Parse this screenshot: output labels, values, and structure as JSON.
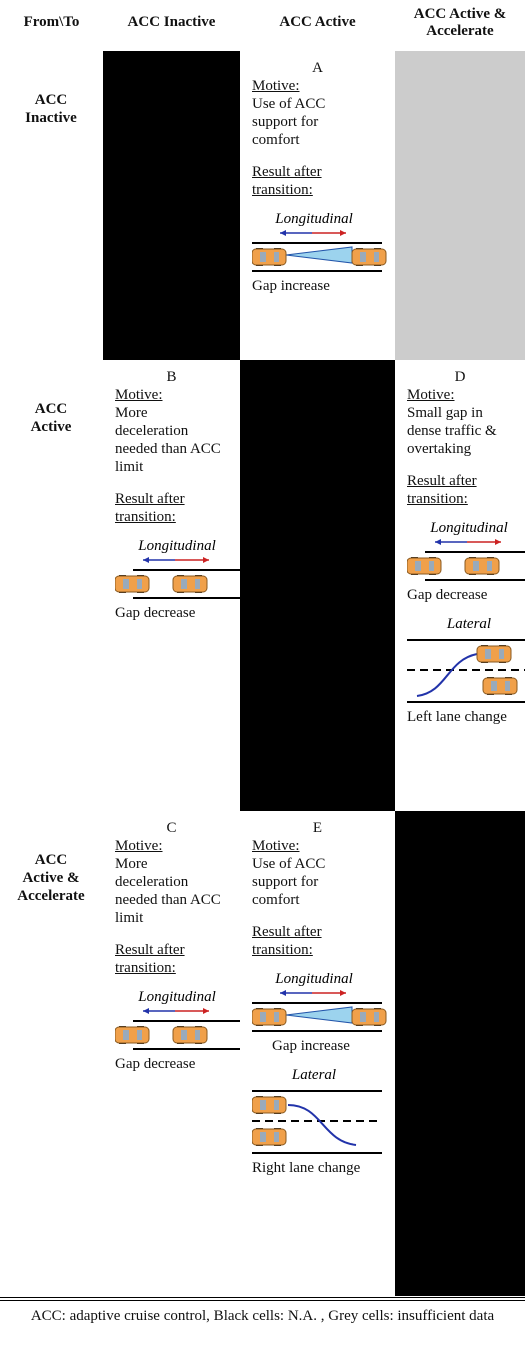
{
  "header": {
    "cells": [
      "From\\To",
      "ACC Inactive",
      "ACC Active",
      "ACC Active & Accelerate"
    ]
  },
  "rows": [
    {
      "label": "ACC Inactive",
      "transitions": [
        {
          "id": "A",
          "motive_label": "Motive:",
          "motive": "Use of ACC support for comfort",
          "result_label": "Result after transition:",
          "diagrams": [
            {
              "title": "Longitudinal",
              "caption": "Gap increase"
            }
          ]
        }
      ]
    },
    {
      "label": "ACC Active",
      "transitions": [
        {
          "id": "B",
          "motive_label": "Motive:",
          "motive": "More deceleration needed than ACC limit",
          "result_label": "Result after transition:",
          "diagrams": [
            {
              "title": "Longitudinal",
              "caption": "Gap decrease"
            }
          ]
        },
        {
          "id": "D",
          "motive_label": "Motive:",
          "motive": "Small gap in dense traffic & overtaking",
          "result_label": "Result after transition:",
          "diagrams": [
            {
              "title": "Longitudinal",
              "caption": "Gap decrease"
            },
            {
              "title": "Lateral",
              "caption": "Left lane change"
            }
          ]
        }
      ]
    },
    {
      "label": "ACC Active & Accelerate",
      "transitions": [
        {
          "id": "C",
          "motive_label": "Motive:",
          "motive": "More deceleration needed than ACC limit",
          "result_label": "Result after transition:",
          "diagrams": [
            {
              "title": "Longitudinal",
              "caption": "Gap decrease"
            }
          ]
        },
        {
          "id": "E",
          "motive_label": "Motive:",
          "motive": "Use of ACC support for comfort",
          "result_label": "Result after transition:",
          "diagrams": [
            {
              "title": "Longitudinal",
              "caption": "Gap increase"
            },
            {
              "title": "Lateral",
              "caption": "Right lane change"
            }
          ]
        }
      ]
    }
  ],
  "caption": "ACC: adaptive cruise control, Black cells: N.A. , Grey cells: insufficient data"
}
